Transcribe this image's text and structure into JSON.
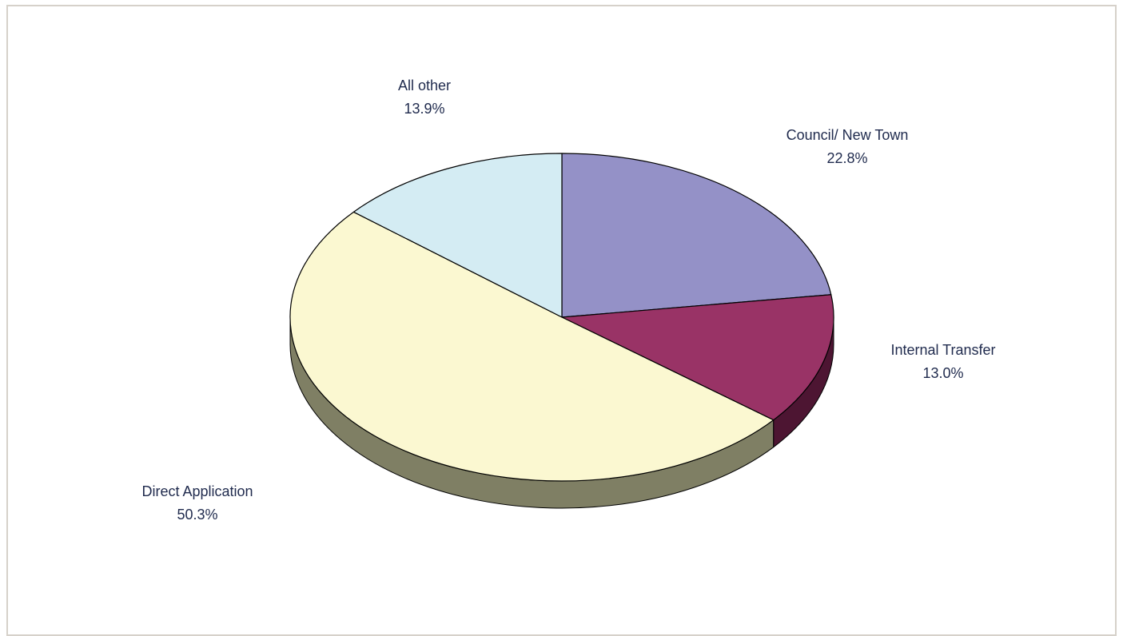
{
  "chart_data": {
    "type": "pie",
    "title": "",
    "slices": [
      {
        "label": "Council/ New Town",
        "value": 22.8,
        "display": "22.8%",
        "color": "#9491c7",
        "side_color": "#55536f"
      },
      {
        "label": "Internal Transfer",
        "value": 13.0,
        "display": "13.0%",
        "color": "#993366",
        "side_color": "#4d1532"
      },
      {
        "label": "Direct Application",
        "value": 50.3,
        "display": "50.3%",
        "color": "#fbf8d1",
        "side_color": "#7f7f64"
      },
      {
        "label": "All other",
        "value": 13.9,
        "display": "13.9%",
        "color": "#d4ecf3",
        "side_color": "#7e8e93"
      }
    ],
    "start": "12 o'clock",
    "direction": "clockwise",
    "style": "3d"
  }
}
